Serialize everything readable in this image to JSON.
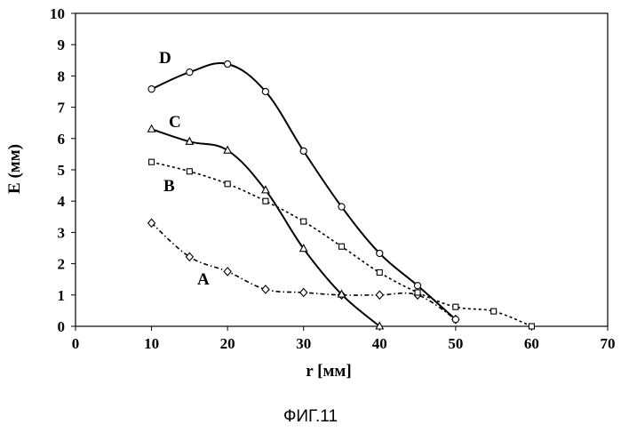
{
  "chart_data": {
    "type": "line",
    "xlabel": "r [мм]",
    "ylabel": "E (мм)",
    "xlim": [
      0,
      70
    ],
    "ylim": [
      0,
      10
    ],
    "x_ticks": [
      "0",
      "10",
      "20",
      "30",
      "40",
      "50",
      "60",
      "70"
    ],
    "y_ticks": [
      "0",
      "1",
      "2",
      "3",
      "4",
      "5",
      "6",
      "7",
      "8",
      "9",
      "10"
    ],
    "grid": false,
    "legend": "none",
    "series": [
      {
        "name": "A",
        "marker": "diamond",
        "line": "dashdot",
        "x": [
          10,
          15,
          20,
          25,
          30,
          35,
          40,
          45,
          50
        ],
        "y": [
          3.3,
          2.22,
          1.75,
          1.18,
          1.08,
          1.0,
          1.0,
          1.0,
          0.22
        ]
      },
      {
        "name": "B",
        "marker": "square",
        "line": "dotted",
        "x": [
          10,
          15,
          20,
          25,
          30,
          35,
          40,
          45,
          50,
          55,
          60
        ],
        "y": [
          5.25,
          4.95,
          4.55,
          4.0,
          3.35,
          2.55,
          1.72,
          1.08,
          0.62,
          0.48,
          0.0
        ]
      },
      {
        "name": "C",
        "marker": "triangle",
        "line": "solid",
        "x": [
          10,
          15,
          20,
          25,
          30,
          35,
          40
        ],
        "y": [
          6.3,
          5.9,
          5.62,
          4.35,
          2.48,
          1.02,
          0.0
        ]
      },
      {
        "name": "D",
        "marker": "circle",
        "line": "solid",
        "x": [
          10,
          15,
          20,
          25,
          30,
          35,
          40,
          45,
          50
        ],
        "y": [
          7.58,
          8.12,
          8.38,
          7.5,
          5.6,
          3.82,
          2.33,
          1.3,
          0.22
        ]
      }
    ]
  },
  "caption": "ФИГ.11"
}
